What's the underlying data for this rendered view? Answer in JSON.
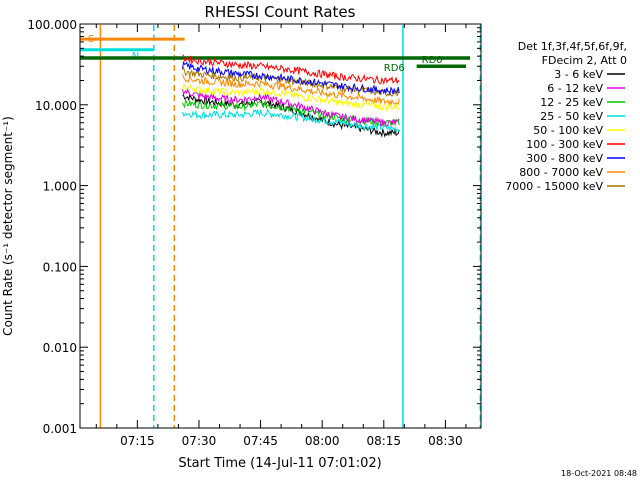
{
  "chart_data": {
    "type": "line",
    "title": "RHESSI Count Rates",
    "xlabel": "Start Time (14-Jul-11 07:01:02)",
    "ylabel": "Count Rate (s⁻¹ detector segment⁻¹)",
    "yscale": "log",
    "ylim": [
      0.001,
      100
    ],
    "xlim": [
      "07:01:02",
      "08:38:40"
    ],
    "x_ticks": [
      "07:15",
      "07:30",
      "07:45",
      "08:00",
      "08:15",
      "08:30"
    ],
    "y_ticks": [
      "0.001",
      "0.010",
      "0.100",
      "1.000",
      "10.000",
      "100.000"
    ],
    "grid": false,
    "legend_position": "right",
    "legend_header": [
      "Det 1f,3f,4f,5f,6f,9f,",
      "FDecim 2, Att 0"
    ],
    "series": [
      {
        "name": "3 - 6 keV",
        "color": "#000000",
        "x": [
          "07:26",
          "07:30",
          "07:35",
          "07:40",
          "07:45",
          "07:50",
          "07:55",
          "08:00",
          "08:05",
          "08:10",
          "08:15",
          "08:19"
        ],
        "y": [
          13,
          11.5,
          10.5,
          10,
          11,
          9.5,
          8,
          6.5,
          5.5,
          5,
          4.5,
          4.5
        ]
      },
      {
        "name": "6 - 12 keV",
        "color": "#dd00dd",
        "x": [
          "07:26",
          "07:30",
          "07:35",
          "07:40",
          "07:45",
          "07:50",
          "07:55",
          "08:00",
          "08:05",
          "08:10",
          "08:15",
          "08:19"
        ],
        "y": [
          15,
          13,
          12,
          11.5,
          12.5,
          11,
          9.5,
          8,
          7,
          6.5,
          6,
          6
        ]
      },
      {
        "name": "12 - 25 keV",
        "color": "#00cc00",
        "x": [
          "07:26",
          "07:30",
          "07:35",
          "07:40",
          "07:45",
          "07:50",
          "07:55",
          "08:00",
          "08:05",
          "08:10",
          "08:15",
          "08:19"
        ],
        "y": [
          10.5,
          10,
          9.8,
          9.5,
          10.2,
          9.5,
          8.5,
          7.5,
          6.8,
          6.4,
          6,
          6
        ]
      },
      {
        "name": "25 - 50 keV",
        "color": "#00dddd",
        "x": [
          "07:26",
          "07:30",
          "07:35",
          "07:40",
          "07:45",
          "07:50",
          "07:55",
          "08:00",
          "08:05",
          "08:10",
          "08:15",
          "08:19"
        ],
        "y": [
          8,
          7.5,
          7.5,
          7.5,
          8,
          7.5,
          7,
          6.5,
          6,
          5.5,
          5.2,
          5
        ]
      },
      {
        "name": "50 - 100 keV",
        "color": "#fffb00",
        "x": [
          "07:26",
          "07:30",
          "07:35",
          "07:40",
          "07:45",
          "07:50",
          "07:55",
          "08:00",
          "08:05",
          "08:10",
          "08:15",
          "08:19"
        ],
        "y": [
          17,
          15.5,
          14.5,
          14,
          15,
          14,
          12.5,
          11.5,
          10.5,
          10,
          9.5,
          9.5
        ]
      },
      {
        "name": "100 - 300 keV",
        "color": "#ff0000",
        "x": [
          "07:26",
          "07:30",
          "07:35",
          "07:40",
          "07:45",
          "07:50",
          "07:55",
          "08:00",
          "08:05",
          "08:10",
          "08:15",
          "08:19"
        ],
        "y": [
          38,
          35,
          33,
          31,
          30,
          28,
          26,
          24,
          22,
          21,
          20,
          20
        ]
      },
      {
        "name": "300 - 800 keV",
        "color": "#0000ff",
        "x": [
          "07:26",
          "07:30",
          "07:35",
          "07:40",
          "07:45",
          "07:50",
          "07:55",
          "08:00",
          "08:05",
          "08:10",
          "08:15",
          "08:19"
        ],
        "y": [
          31,
          28,
          26,
          24,
          23,
          21.5,
          20,
          18.5,
          17,
          16,
          15,
          15
        ]
      },
      {
        "name": "800 - 7000 keV",
        "color": "#ff8800",
        "x": [
          "07:26",
          "07:30",
          "07:35",
          "07:40",
          "07:45",
          "07:50",
          "07:55",
          "08:00",
          "08:05",
          "08:10",
          "08:15",
          "08:19"
        ],
        "y": [
          22,
          20,
          19,
          18,
          18.5,
          17,
          15.5,
          14,
          13,
          12,
          11,
          11
        ]
      },
      {
        "name": "7000 - 15000 keV",
        "color": "#aa7700",
        "x": [
          "07:26",
          "07:30",
          "07:35",
          "07:40",
          "07:45",
          "07:50",
          "07:55",
          "08:00",
          "08:05",
          "08:10",
          "08:15",
          "08:19"
        ],
        "y": [
          26,
          24,
          22.5,
          21.5,
          22,
          20.5,
          19,
          17.5,
          16,
          15,
          14,
          14
        ]
      }
    ],
    "annotations": [
      {
        "label": "S",
        "color": "#ff8800",
        "x_start": "07:01:02",
        "x_end": "07:26:30",
        "y": 65
      },
      {
        "label": "N",
        "color": "#00dddd",
        "x_start": "07:01:02",
        "x_end": "07:19:00",
        "y": 48
      },
      {
        "label": "RD6",
        "color": "#006600",
        "x_start": "07:01:02",
        "x_end": "08:36:00",
        "y": 38
      },
      {
        "label": "RD0",
        "color": "#006600",
        "x_start": "08:23:00",
        "x_end": "08:35:00",
        "y": 30
      }
    ],
    "vertical_markers": [
      {
        "x": "07:06:00",
        "color": "#ff8800",
        "style": "solid"
      },
      {
        "x": "07:19:00",
        "color": "#00dddd",
        "style": "dashed"
      },
      {
        "x": "07:24:00",
        "color": "#ff8800",
        "style": "dashed"
      },
      {
        "x": "08:19:40",
        "color": "#00dddd",
        "style": "solid"
      },
      {
        "x": "08:38:30",
        "color": "#00dddd",
        "style": "dashed"
      }
    ]
  },
  "footer_timestamp": "18-Oct-2021 08:48"
}
